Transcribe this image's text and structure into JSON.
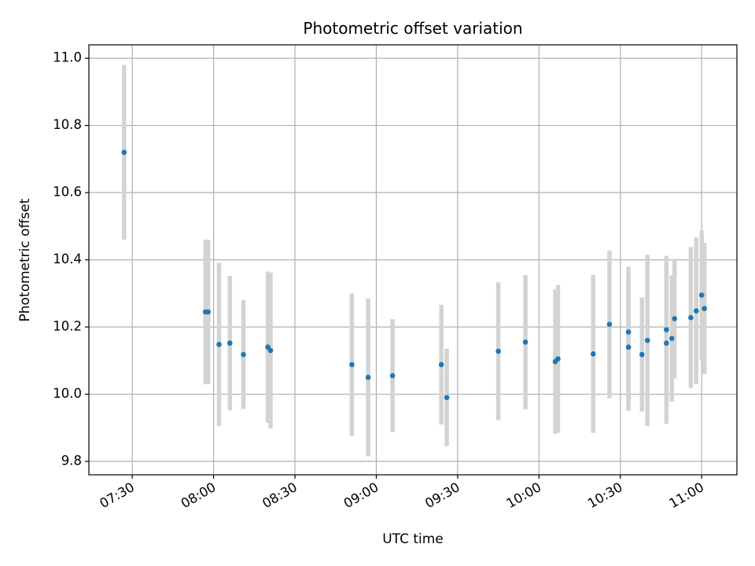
{
  "chart_data": {
    "type": "scatter",
    "title": "Photometric offset variation",
    "xlabel": "UTC time",
    "ylabel": "Photometric offset",
    "x_ticks": [
      "07:30",
      "08:00",
      "08:30",
      "09:00",
      "09:30",
      "10:00",
      "10:30",
      "11:00"
    ],
    "y_ticks": [
      "9.8",
      "10.0",
      "10.2",
      "10.4",
      "10.6",
      "10.8",
      "11.0"
    ],
    "xlim": [
      "07:14",
      "11:13"
    ],
    "ylim": [
      9.76,
      11.04
    ],
    "grid": true,
    "marker_color": "#1f77b4",
    "errorbar_color": "#d3d3d3",
    "series": [
      {
        "points": [
          {
            "t": "07:27",
            "y": 10.72,
            "err": 0.26
          },
          {
            "t": "07:57",
            "y": 10.245,
            "err": 0.215
          },
          {
            "t": "07:58",
            "y": 10.245,
            "err": 0.215
          },
          {
            "t": "08:02",
            "y": 10.148,
            "err": 0.243
          },
          {
            "t": "08:06",
            "y": 10.152,
            "err": 0.2
          },
          {
            "t": "08:11",
            "y": 10.118,
            "err": 0.162
          },
          {
            "t": "08:20",
            "y": 10.14,
            "err": 0.225
          },
          {
            "t": "08:21",
            "y": 10.13,
            "err": 0.232
          },
          {
            "t": "08:51",
            "y": 10.088,
            "err": 0.212
          },
          {
            "t": "08:57",
            "y": 10.05,
            "err": 0.235
          },
          {
            "t": "09:06",
            "y": 10.055,
            "err": 0.168
          },
          {
            "t": "09:24",
            "y": 10.088,
            "err": 0.178
          },
          {
            "t": "09:26",
            "y": 9.99,
            "err": 0.145
          },
          {
            "t": "09:45",
            "y": 10.128,
            "err": 0.205
          },
          {
            "t": "09:55",
            "y": 10.155,
            "err": 0.2
          },
          {
            "t": "10:06",
            "y": 10.097,
            "err": 0.215
          },
          {
            "t": "10:07",
            "y": 10.105,
            "err": 0.22
          },
          {
            "t": "10:20",
            "y": 10.12,
            "err": 0.235
          },
          {
            "t": "10:26",
            "y": 10.208,
            "err": 0.22
          },
          {
            "t": "10:33",
            "y": 10.14,
            "err": 0.19
          },
          {
            "t": "10:33",
            "y": 10.185,
            "err": 0.195
          },
          {
            "t": "10:38",
            "y": 10.118,
            "err": 0.17
          },
          {
            "t": "10:40",
            "y": 10.16,
            "err": 0.255
          },
          {
            "t": "10:47",
            "y": 10.192,
            "err": 0.22
          },
          {
            "t": "10:47",
            "y": 10.152,
            "err": 0.24
          },
          {
            "t": "10:49",
            "y": 10.166,
            "err": 0.188
          },
          {
            "t": "10:50",
            "y": 10.225,
            "err": 0.178
          },
          {
            "t": "10:56",
            "y": 10.228,
            "err": 0.21
          },
          {
            "t": "10:58",
            "y": 10.248,
            "err": 0.218
          },
          {
            "t": "11:00",
            "y": 10.295,
            "err": 0.192
          },
          {
            "t": "11:01",
            "y": 10.255,
            "err": 0.195
          }
        ]
      }
    ]
  }
}
